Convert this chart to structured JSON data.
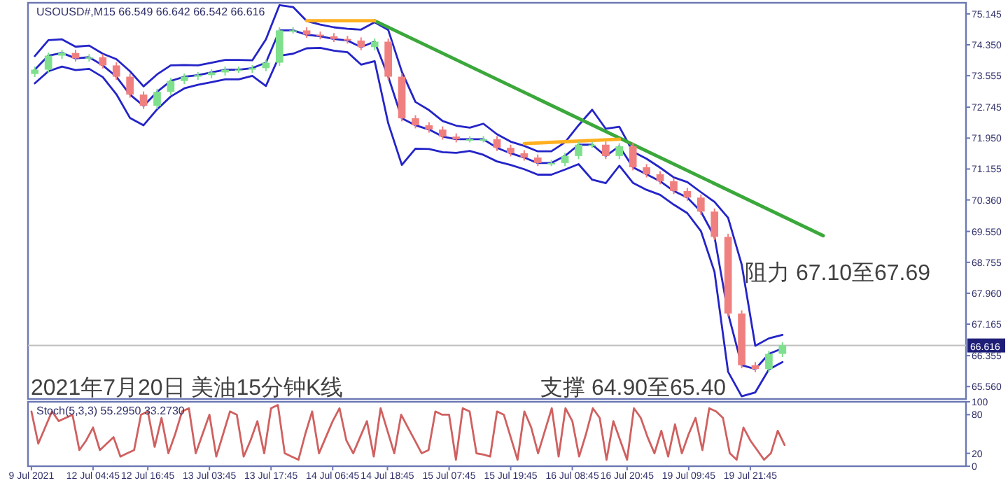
{
  "chart_data": [
    {
      "type": "candlestick",
      "title": "USOUSD#,M15 66.549 66.642 66.542 66.616",
      "annotations": [
        "阻力 67.10至67.69",
        "支撑 64.90至65.40",
        "2021年7月20日 美油15分钟K线"
      ],
      "categories": [
        null,
        null,
        null,
        null,
        null,
        null,
        null,
        null,
        null,
        null,
        null,
        null,
        null,
        null,
        null,
        null,
        null,
        null,
        null,
        null,
        null,
        null,
        null,
        null,
        null,
        null,
        null,
        null,
        null,
        null,
        null,
        null,
        null,
        null,
        null,
        null,
        null,
        null,
        null,
        null,
        null,
        null,
        null,
        null,
        null,
        null,
        null,
        null,
        null,
        null,
        null,
        null,
        null,
        null,
        null,
        null,
        null,
        null,
        null,
        null,
        null,
        null,
        null,
        null,
        null,
        null,
        null,
        null,
        null
      ],
      "ohlc": [
        [
          73.6,
          73.79,
          73.52,
          73.71
        ],
        [
          73.71,
          74.15,
          73.63,
          74.07
        ],
        [
          74.07,
          74.22,
          73.99,
          74.14
        ],
        [
          74.14,
          74.22,
          73.92,
          74.0
        ],
        [
          74.0,
          74.11,
          73.92,
          74.03
        ],
        [
          74.03,
          74.11,
          73.74,
          73.82
        ],
        [
          73.82,
          73.9,
          73.45,
          73.53
        ],
        [
          73.53,
          73.61,
          72.99,
          73.07
        ],
        [
          73.07,
          73.15,
          72.7,
          72.78
        ],
        [
          72.78,
          73.22,
          72.7,
          73.14
        ],
        [
          73.14,
          73.5,
          73.06,
          73.42
        ],
        [
          73.42,
          73.61,
          73.34,
          73.53
        ],
        [
          73.53,
          73.65,
          73.45,
          73.57
        ],
        [
          73.57,
          73.72,
          73.49,
          73.64
        ],
        [
          73.64,
          73.79,
          73.56,
          73.71
        ],
        [
          73.71,
          73.79,
          73.63,
          73.71
        ],
        [
          73.71,
          73.83,
          73.63,
          73.75
        ],
        [
          73.75,
          73.97,
          73.67,
          73.89
        ],
        [
          73.89,
          74.8,
          73.81,
          74.72
        ],
        [
          74.72,
          74.8,
          74.64,
          74.72
        ],
        [
          74.72,
          74.8,
          74.53,
          74.61
        ],
        [
          74.61,
          74.69,
          74.49,
          74.57
        ],
        [
          74.57,
          74.65,
          74.42,
          74.5
        ],
        [
          74.5,
          74.58,
          74.38,
          74.46
        ],
        [
          74.46,
          74.54,
          74.21,
          74.29
        ],
        [
          74.29,
          74.51,
          74.21,
          74.43
        ],
        [
          74.43,
          74.51,
          73.45,
          73.53
        ],
        [
          73.53,
          73.61,
          72.38,
          72.46
        ],
        [
          72.46,
          72.54,
          72.2,
          72.28
        ],
        [
          72.28,
          72.36,
          72.09,
          72.17
        ],
        [
          72.17,
          72.25,
          71.91,
          71.99
        ],
        [
          71.99,
          72.07,
          71.84,
          71.92
        ],
        [
          71.92,
          72.0,
          71.84,
          71.92
        ],
        [
          71.92,
          72.0,
          71.84,
          71.92
        ],
        [
          71.92,
          72.0,
          71.62,
          71.7
        ],
        [
          71.7,
          71.78,
          71.48,
          71.56
        ],
        [
          71.56,
          71.64,
          71.37,
          71.45
        ],
        [
          71.45,
          71.53,
          71.23,
          71.31
        ],
        [
          71.31,
          71.39,
          71.23,
          71.31
        ],
        [
          71.31,
          71.57,
          71.23,
          71.49
        ],
        [
          71.49,
          71.86,
          71.41,
          71.78
        ],
        [
          71.78,
          71.86,
          71.7,
          71.78
        ],
        [
          71.78,
          71.86,
          71.41,
          71.49
        ],
        [
          71.49,
          71.82,
          71.41,
          71.74
        ],
        [
          71.74,
          71.82,
          71.12,
          71.2
        ],
        [
          71.2,
          71.28,
          70.94,
          71.02
        ],
        [
          71.02,
          71.1,
          70.76,
          70.84
        ],
        [
          70.84,
          70.92,
          70.51,
          70.59
        ],
        [
          70.59,
          70.67,
          70.34,
          70.42
        ],
        [
          70.42,
          70.5,
          69.98,
          70.06
        ],
        [
          70.06,
          70.14,
          69.33,
          69.41
        ],
        [
          69.41,
          69.49,
          67.36,
          67.44
        ],
        [
          67.44,
          67.52,
          66.03,
          66.11
        ],
        [
          66.11,
          66.19,
          65.93,
          66.01
        ],
        [
          66.01,
          66.48,
          65.93,
          66.4
        ],
        [
          66.4,
          66.7,
          66.32,
          66.62
        ],
        null,
        null,
        null,
        null,
        null,
        null,
        null,
        null,
        null,
        null,
        null,
        null,
        null
      ],
      "colors": [
        "#7ee08c",
        "#7ee08c",
        "#7ee08c",
        "#f08080",
        "#7ee08c",
        "#f08080",
        "#f08080",
        "#f08080",
        "#f08080",
        "#7ee08c",
        "#7ee08c",
        "#7ee08c",
        "#7ee08c",
        "#7ee08c",
        "#7ee08c",
        "#7ee08c",
        "#7ee08c",
        "#7ee08c",
        "#7ee08c",
        "#7ee08c",
        "#f08080",
        "#f08080",
        "#f08080",
        "#f08080",
        "#f08080",
        "#7ee08c",
        "#f08080",
        "#f08080",
        "#f08080",
        "#f08080",
        "#f08080",
        "#f08080",
        "#7ee08c",
        "#7ee08c",
        "#f08080",
        "#f08080",
        "#f08080",
        "#f08080",
        "#7ee08c",
        "#7ee08c",
        "#7ee08c",
        "#7ee08c",
        "#f08080",
        "#7ee08c",
        "#f08080",
        "#f08080",
        "#f08080",
        "#f08080",
        "#f08080",
        "#f08080",
        "#f08080",
        "#f08080",
        "#f08080",
        "#f08080",
        "#7ee08c",
        "#7ee08c",
        null,
        null,
        null,
        null,
        null,
        null,
        null,
        null,
        null,
        null,
        null,
        null,
        null
      ],
      "series": [
        {
          "type": "line",
          "color": "#2424c8",
          "values": [
            74.06,
            74.47,
            74.49,
            74.3,
            74.33,
            74.12,
            73.98,
            73.67,
            73.28,
            73.59,
            73.82,
            73.83,
            73.82,
            73.89,
            73.96,
            73.96,
            73.95,
            74.49,
            75.37,
            75.32,
            74.96,
            74.87,
            74.8,
            74.76,
            74.74,
            74.93,
            74.73,
            73.66,
            72.88,
            72.67,
            72.39,
            72.27,
            72.22,
            72.32,
            72.05,
            71.86,
            71.75,
            71.61,
            71.61,
            71.84,
            72.28,
            72.68,
            72.19,
            72.24,
            71.6,
            71.42,
            71.19,
            70.94,
            70.82,
            70.56,
            70.31,
            69.9,
            68.7,
            66.61,
            66.8,
            66.89,
            null,
            null,
            null,
            null,
            null,
            null,
            null,
            null,
            null,
            null,
            null,
            null,
            null
          ]
        },
        {
          "type": "line",
          "color": "#2424c8",
          "values": [
            73.71,
            74.07,
            74.14,
            74.0,
            74.03,
            73.82,
            73.53,
            73.07,
            72.78,
            73.14,
            73.42,
            73.53,
            73.57,
            73.64,
            73.71,
            73.71,
            73.75,
            73.89,
            74.72,
            74.72,
            74.61,
            74.57,
            74.5,
            74.46,
            74.29,
            74.43,
            73.53,
            72.46,
            72.28,
            72.17,
            71.99,
            71.92,
            71.92,
            71.92,
            71.7,
            71.56,
            71.45,
            71.31,
            71.31,
            71.49,
            71.78,
            71.78,
            71.49,
            71.74,
            71.2,
            71.02,
            70.84,
            70.59,
            70.42,
            70.06,
            69.41,
            67.44,
            66.11,
            66.01,
            66.4,
            66.54,
            null,
            null,
            null,
            null,
            null,
            null,
            null,
            null,
            null,
            null,
            null,
            null,
            null
          ]
        },
        {
          "type": "line",
          "color": "#2424c8",
          "values": [
            73.36,
            73.67,
            73.79,
            73.7,
            73.73,
            73.52,
            73.08,
            72.47,
            72.28,
            72.69,
            73.02,
            73.23,
            73.32,
            73.39,
            73.46,
            73.46,
            73.55,
            73.29,
            74.07,
            74.12,
            74.26,
            74.27,
            74.2,
            74.16,
            73.84,
            73.93,
            72.33,
            71.26,
            71.68,
            71.67,
            71.59,
            71.57,
            71.62,
            71.52,
            71.35,
            71.26,
            71.15,
            71.01,
            71.01,
            71.14,
            71.28,
            70.88,
            70.79,
            71.24,
            70.8,
            70.62,
            70.49,
            70.24,
            70.02,
            69.56,
            68.51,
            65.94,
            65.31,
            65.41,
            66.0,
            66.19,
            null,
            null,
            null,
            null,
            null,
            null,
            null,
            null,
            null,
            null,
            null,
            null,
            null
          ]
        },
        {
          "type": "line",
          "color": "#3aa83a",
          "values": [
            null,
            null,
            null,
            null,
            null,
            null,
            null,
            null,
            null,
            null,
            null,
            null,
            null,
            null,
            null,
            null,
            null,
            null,
            null,
            null,
            null,
            null,
            null,
            null,
            null,
            74.97,
            null,
            null,
            null,
            null,
            null,
            null,
            null,
            null,
            null,
            null,
            null,
            null,
            null,
            null,
            null,
            null,
            null,
            null,
            null,
            null,
            null,
            null,
            null,
            null,
            null,
            null,
            null,
            null,
            null,
            null,
            null,
            null,
            69.44,
            null,
            null,
            null,
            null,
            null,
            null,
            null,
            null,
            null,
            null
          ]
        },
        {
          "type": "line",
          "color": "#ffb020",
          "values": [
            null,
            null,
            null,
            null,
            null,
            null,
            null,
            null,
            null,
            null,
            null,
            null,
            null,
            null,
            null,
            null,
            null,
            null,
            null,
            null,
            74.97,
            null,
            null,
            null,
            null,
            74.97,
            null,
            null,
            null,
            null,
            null,
            null,
            null,
            null,
            null,
            null,
            null,
            null,
            null,
            null,
            null,
            null,
            null,
            null,
            null,
            null,
            null,
            null,
            null,
            null,
            null,
            null,
            null,
            null,
            null,
            null,
            null,
            null,
            null,
            null,
            null,
            null,
            null,
            null,
            null,
            null,
            null,
            null,
            null
          ]
        },
        {
          "type": "line",
          "color": "#ffb020",
          "values": [
            null,
            null,
            null,
            null,
            null,
            null,
            null,
            null,
            null,
            null,
            null,
            null,
            null,
            null,
            null,
            null,
            null,
            null,
            null,
            null,
            null,
            null,
            null,
            null,
            null,
            null,
            null,
            null,
            null,
            null,
            null,
            null,
            null,
            null,
            null,
            null,
            71.81,
            null,
            null,
            null,
            null,
            null,
            null,
            71.92,
            null,
            null,
            null,
            null,
            null,
            null,
            null,
            null,
            null,
            null,
            null,
            null,
            null,
            null,
            null,
            null,
            null,
            null,
            null,
            null,
            null,
            null,
            null,
            null,
            null
          ]
        }
      ],
      "ref_lines": [
        {
          "axis": "y",
          "value": 66.616,
          "label": "66.616",
          "color": "#c0c0c0"
        }
      ],
      "ylim": [
        65.24,
        75.43
      ],
      "yticks": [
        75.145,
        {
          "value": 74.35,
          "label": "74.350"
        },
        73.555,
        72.745,
        {
          "value": 71.95,
          "label": "71.950"
        },
        71.155,
        {
          "value": 70.36,
          "label": "70.360"
        },
        {
          "value": 69.55,
          "label": "69.550"
        },
        68.755,
        {
          "value": 67.96,
          "label": "67.960"
        },
        67.165,
        66.355,
        {
          "value": 65.56,
          "label": "65.560"
        }
      ]
    },
    {
      "type": "line",
      "title": "Stoch(5,3,3) 55.2950 33.2730",
      "categories": [
        "9 Jul 2021",
        null,
        null,
        null,
        null,
        null,
        null,
        null,
        null,
        "12 Jul 04:45",
        null,
        null,
        null,
        null,
        null,
        null,
        null,
        "12 Jul 16:45",
        null,
        null,
        null,
        null,
        null,
        null,
        null,
        null,
        "13 Jul 03:45",
        null,
        null,
        null,
        null,
        null,
        null,
        null,
        null,
        "13 Jul 17:45",
        null,
        null,
        null,
        null,
        null,
        null,
        null,
        null,
        "14 Jul 06:45",
        null,
        null,
        null,
        null,
        null,
        null,
        null,
        "14 Jul 18:45",
        null,
        null,
        null,
        null,
        null,
        null,
        null,
        null,
        "15 Jul 07:45",
        null,
        null,
        null,
        null,
        null,
        null,
        null,
        null,
        "15 Jul 19:45",
        null,
        null,
        null,
        null,
        null,
        null,
        null,
        null,
        "16 Jul 08:45",
        null,
        null,
        null,
        null,
        null,
        null,
        null,
        "16 Jul 20:45",
        null,
        null,
        null,
        null,
        null,
        null,
        null,
        null,
        "19 Jul 09:45",
        null,
        null,
        null,
        null,
        null,
        null,
        null,
        null,
        "19 Jul 21:45",
        null,
        null,
        null,
        null,
        null,
        null,
        null,
        null,
        null,
        null,
        null,
        null,
        null,
        null,
        null,
        null,
        null,
        null,
        null,
        null,
        null,
        null,
        null,
        null,
        null,
        null,
        null,
        null,
        null,
        null,
        null
      ],
      "series": [
        {
          "color": "#d06060",
          "values": [
            85,
            35,
            60,
            85,
            70,
            75,
            80,
            25,
            40,
            60,
            25,
            35,
            45,
            15,
            20,
            25,
            80,
            85,
            30,
            75,
            20,
            50,
            85,
            90,
            20,
            50,
            80,
            15,
            50,
            85,
            80,
            15,
            40,
            70,
            20,
            90,
            95,
            20,
            15,
            10,
            50,
            85,
            20,
            45,
            70,
            90,
            40,
            20,
            45,
            70,
            15,
            90,
            55,
            20,
            80,
            60,
            40,
            20,
            25,
            85,
            80,
            80,
            10,
            90,
            85,
            20,
            18,
            15,
            85,
            80,
            45,
            10,
            85,
            60,
            20,
            55,
            90,
            15,
            90,
            70,
            15,
            50,
            90,
            75,
            10,
            70,
            40,
            10,
            90,
            75,
            45,
            20,
            55,
            15,
            65,
            20,
            50,
            75,
            25,
            90,
            85,
            75,
            20,
            10,
            60,
            40,
            25,
            10,
            20,
            55,
            33,
            null,
            null,
            null,
            null,
            null,
            null,
            null,
            null,
            null,
            null,
            null,
            null,
            null,
            null,
            null,
            null,
            null,
            null,
            null,
            null,
            null,
            null,
            null,
            null,
            null,
            null
          ]
        }
      ],
      "ylim": [
        0,
        100
      ],
      "yticks": [
        0,
        20,
        80,
        100
      ]
    }
  ]
}
